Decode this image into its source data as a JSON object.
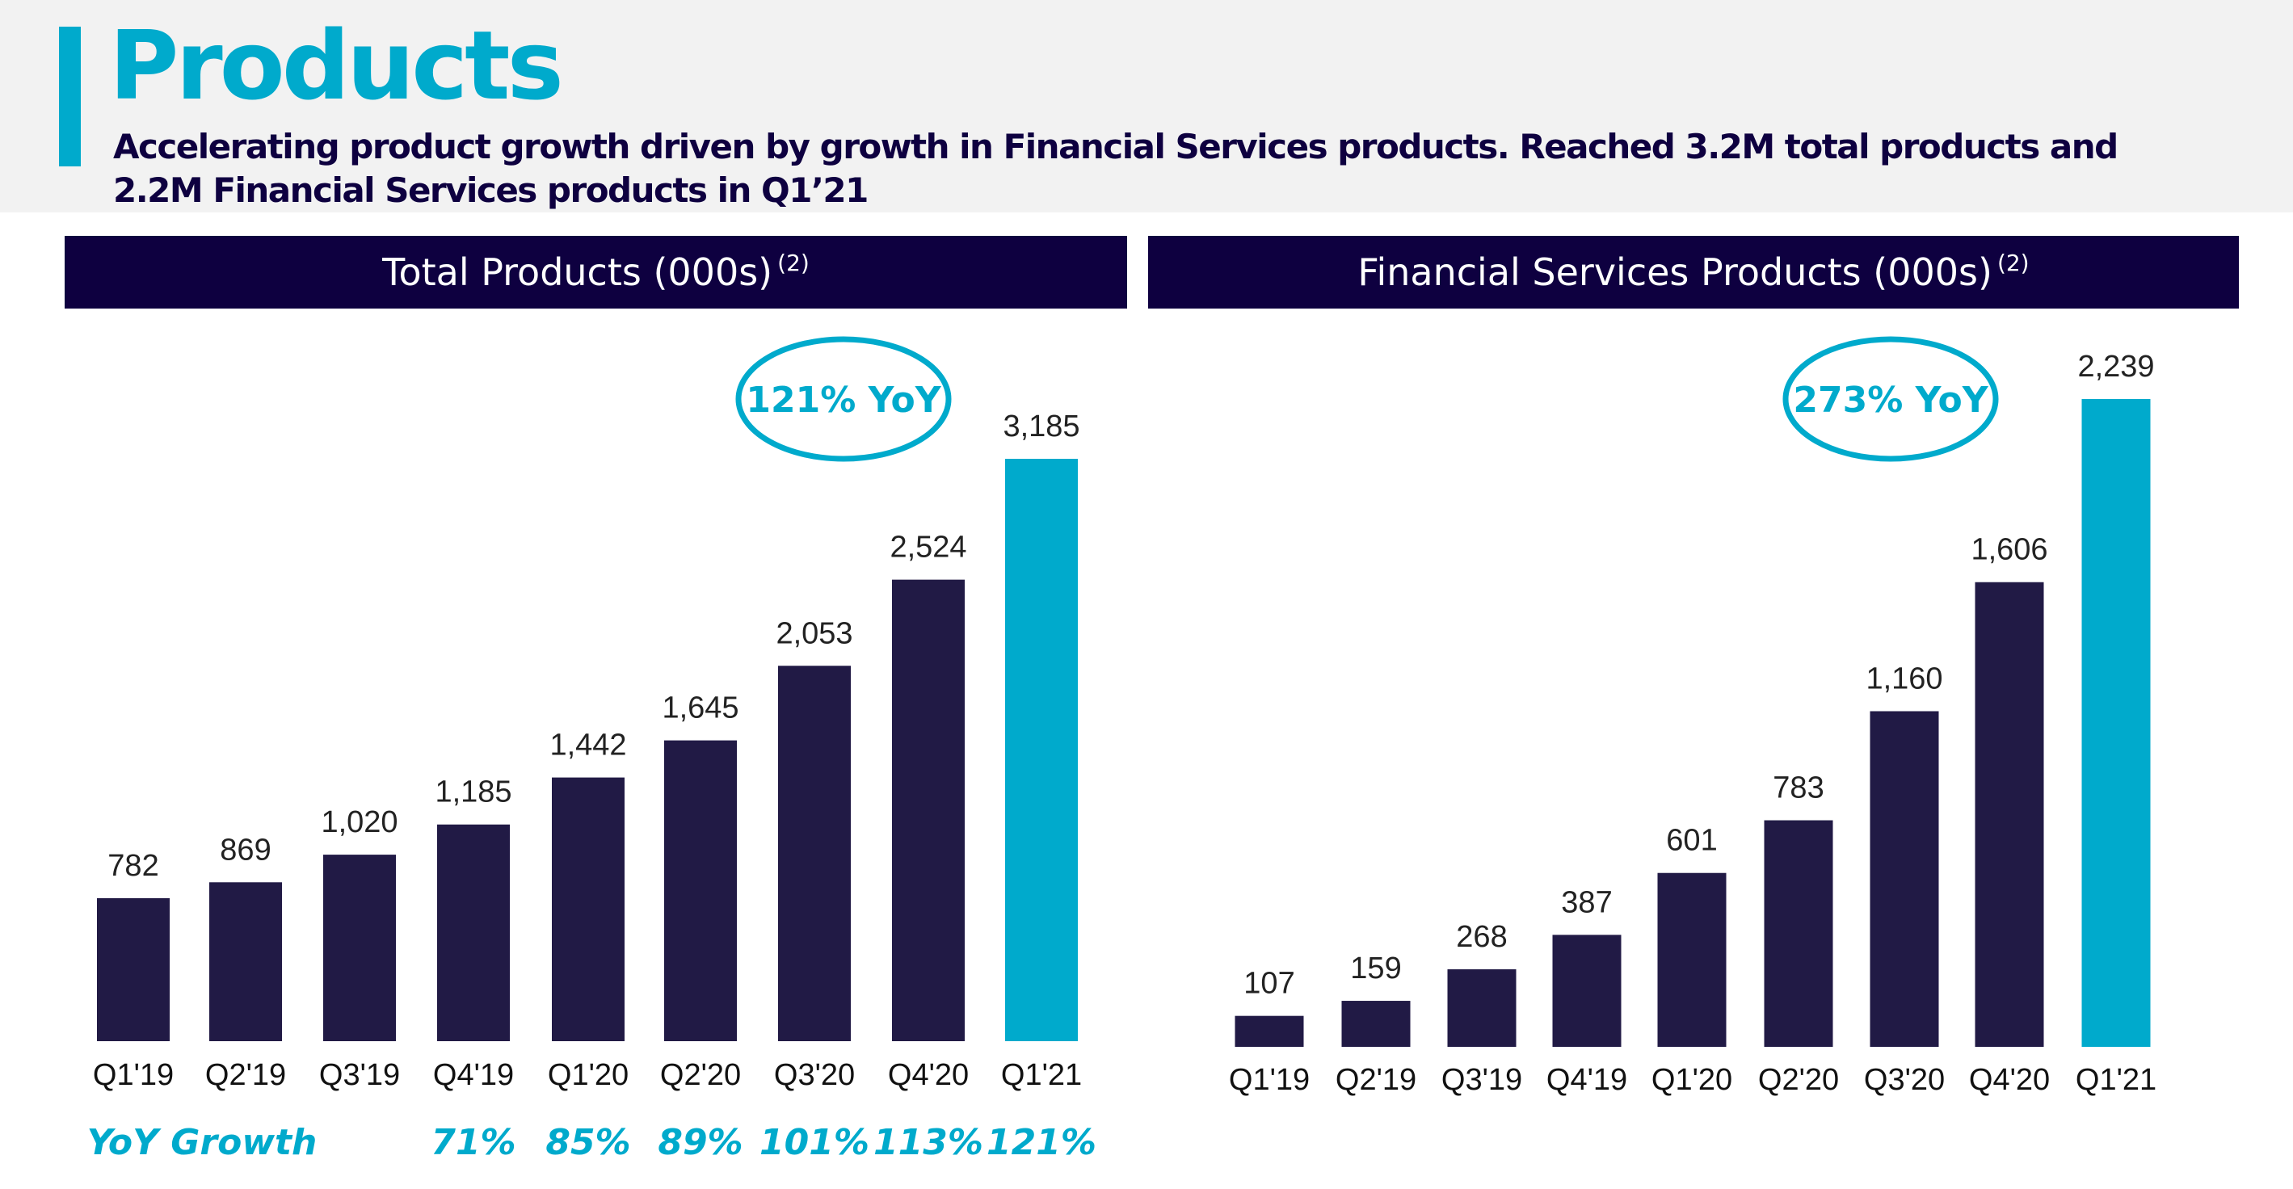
{
  "header": {
    "title": "Products",
    "subtitle": "Accelerating product growth driven by growth in Financial Services products. Reached 3.2M total products and 2.2M Financial Services products in Q1’21"
  },
  "colors": {
    "bar": "#211a45",
    "highlight": "#00aacc",
    "header_bar": "#0e0040"
  },
  "chart_data": [
    {
      "type": "bar",
      "title": "Total Products (000s)",
      "title_footnote": "(2)",
      "categories": [
        "Q1'19",
        "Q2'19",
        "Q3'19",
        "Q4'19",
        "Q1'20",
        "Q2'20",
        "Q3'20",
        "Q4'20",
        "Q1'21"
      ],
      "values": [
        782,
        869,
        1020,
        1185,
        1442,
        1645,
        2053,
        2524,
        3185
      ],
      "data_labels": [
        "782",
        "869",
        "1,020",
        "1,185",
        "1,442",
        "1,645",
        "2,053",
        "2,524",
        "3,185"
      ],
      "highlight_index": 8,
      "callout": "121% YoY",
      "yoy_label": "YoY Growth",
      "yoy_growth": [
        "",
        "",
        "",
        "71%",
        "85%",
        "89%",
        "101%",
        "113%",
        "121%"
      ],
      "grid": false
    },
    {
      "type": "bar",
      "title": "Financial Services Products (000s)",
      "title_footnote": "(2)",
      "categories": [
        "Q1'19",
        "Q2'19",
        "Q3'19",
        "Q4'19",
        "Q1'20",
        "Q2'20",
        "Q3'20",
        "Q4'20",
        "Q1'21"
      ],
      "values": [
        107,
        159,
        268,
        387,
        601,
        783,
        1160,
        1606,
        2239
      ],
      "data_labels": [
        "107",
        "159",
        "268",
        "387",
        "601",
        "783",
        "1,160",
        "1,606",
        "2,239"
      ],
      "highlight_index": 8,
      "callout": "273% YoY",
      "grid": false
    }
  ]
}
